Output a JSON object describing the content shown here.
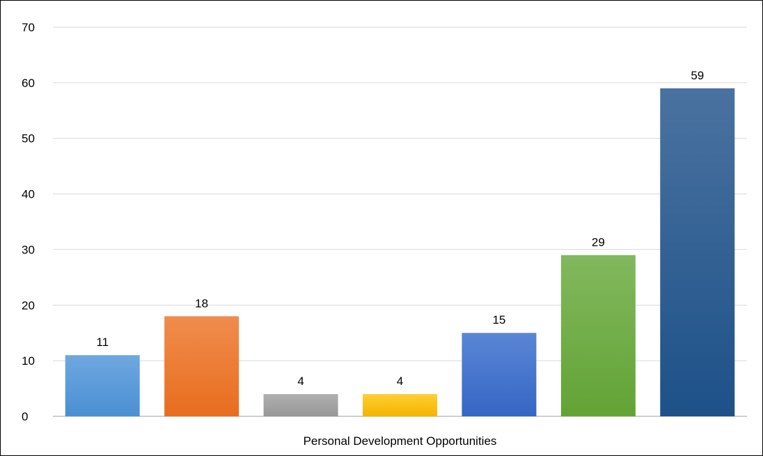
{
  "chart_data": {
    "type": "bar",
    "category_label": "Personal Development Opportunities",
    "series": [
      {
        "value": 11,
        "color_top": "#6fa8e0",
        "color_bottom": "#4a8fd3"
      },
      {
        "value": 18,
        "color_top": "#f08c4e",
        "color_bottom": "#e86d1e"
      },
      {
        "value": 4,
        "color_top": "#b0b0b0",
        "color_bottom": "#979797"
      },
      {
        "value": 4,
        "color_top": "#ffcf33",
        "color_bottom": "#f4b400"
      },
      {
        "value": 15,
        "color_top": "#5b86d6",
        "color_bottom": "#3566c4"
      },
      {
        "value": 29,
        "color_top": "#82b85e",
        "color_bottom": "#62a335"
      },
      {
        "value": 59,
        "color_top": "#4a72a0",
        "color_bottom": "#1d5188"
      }
    ],
    "ylim": [
      0,
      70
    ],
    "yticks": [
      0,
      10,
      20,
      30,
      40,
      50,
      60,
      70
    ],
    "grid": true,
    "legend": "none"
  }
}
